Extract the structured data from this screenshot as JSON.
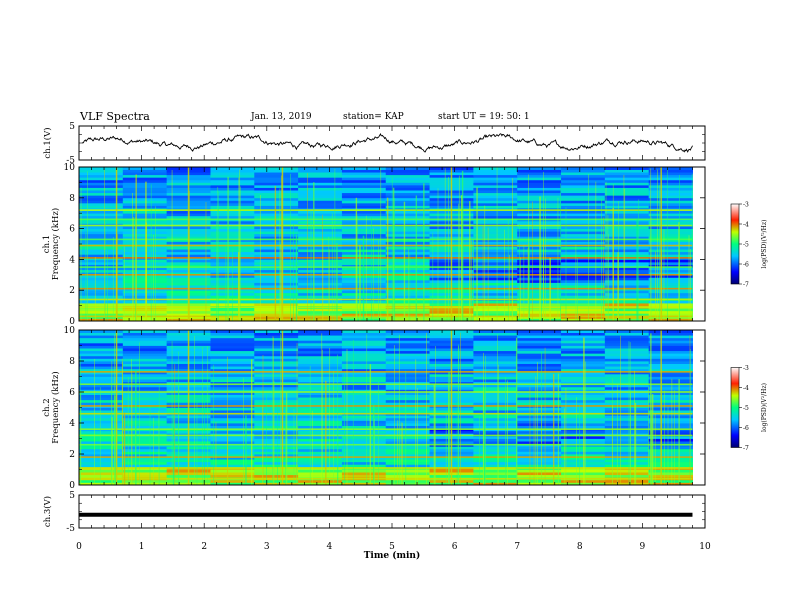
{
  "header": {
    "title": "VLF Spectra",
    "date": "Jan. 13, 2019",
    "station": "station= KAP",
    "start": "start UT = 19: 50: 1"
  },
  "chart_data": [
    {
      "type": "line",
      "ylabel": "ch.1(V)",
      "ylim": [
        -5,
        5
      ],
      "yticks": [
        "5",
        "-5"
      ],
      "xlim": [
        0,
        10
      ],
      "note": "noisy voltage trace across approximately -3 to 3 V from 0 to 9.8 min",
      "series": [
        {
          "values_range": [
            -3,
            3
          ],
          "x_range": [
            0.05,
            9.8
          ]
        }
      ]
    },
    {
      "type": "heatmap",
      "ylabel": "ch.1\nFrequency (kHz)",
      "ylim": [
        0,
        10
      ],
      "yticks": [
        "0",
        "2",
        "4",
        "6",
        "8",
        "10"
      ],
      "xlim": [
        0,
        10
      ],
      "x_extent": [
        0,
        9.8
      ],
      "colorbar": {
        "label": "log(PSD)(V²/Hz)",
        "range": [
          -7,
          -3
        ],
        "ticks": [
          "-3",
          "-4",
          "-5",
          "-6",
          "-7"
        ]
      },
      "bands_khz": [
        0.3,
        0.9,
        1.4,
        2.1,
        3.0,
        3.5,
        4.1,
        4.9,
        5.3,
        6.2,
        6.6,
        7.2
      ]
    },
    {
      "type": "heatmap",
      "ylabel": "ch.2\nFrequency (kHz)",
      "ylim": [
        0,
        10
      ],
      "yticks": [
        "0",
        "2",
        "4",
        "6",
        "8",
        "10"
      ],
      "xlim": [
        0,
        10
      ],
      "x_extent": [
        0,
        9.8
      ],
      "colorbar": {
        "label": "log(PSD)(V²/Hz)",
        "range": [
          -7,
          -3
        ],
        "ticks": [
          "-3",
          "-4",
          "-5",
          "-6",
          "-7"
        ]
      },
      "bands_khz": [
        0.4,
        1.1,
        1.8,
        2.6,
        3.2,
        3.6,
        4.6,
        5.1,
        6.0,
        6.5,
        7.3
      ]
    },
    {
      "type": "line",
      "ylabel": "ch.3(V)",
      "ylim": [
        -5,
        5
      ],
      "yticks": [
        "5",
        "-5"
      ],
      "xlim": [
        0,
        10
      ],
      "series": [
        {
          "constant_value": -1,
          "x_range": [
            0,
            9.8
          ]
        }
      ]
    }
  ],
  "xaxis": {
    "label": "Time (min)",
    "ticks": [
      "0",
      "1",
      "2",
      "3",
      "4",
      "5",
      "6",
      "7",
      "8",
      "9",
      "10"
    ]
  },
  "colors": {
    "trace": "#000000",
    "spectrogram_low": "#10109a",
    "spectrogram_mid": "#00d8e0",
    "spectrogram_high": "#c8f000"
  }
}
